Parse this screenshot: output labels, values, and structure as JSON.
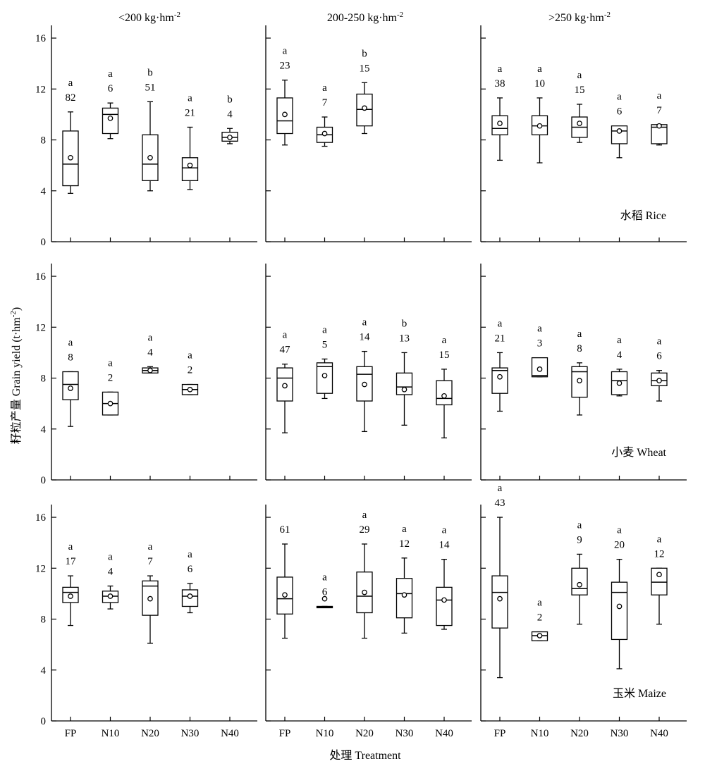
{
  "columns": [
    {
      "pre": "<200 kg·hm",
      "sup": "-2"
    },
    {
      "pre": "200-250 kg·hm",
      "sup": "-2"
    },
    {
      "pre": ">250 kg·hm",
      "sup": "-2"
    }
  ],
  "y_axis_label": {
    "pre": "籽粒产量 Grain yield (t·hm",
    "sup": "-2",
    "post": ")"
  },
  "x_axis_label": "处理 Treatment",
  "crop_labels": [
    "水稻 Rice",
    "小麦 Wheat",
    "玉米 Maize"
  ],
  "chart_data": {
    "type": "box",
    "categories": [
      "FP",
      "N10",
      "N20",
      "N30",
      "N40"
    ],
    "ylim": [
      0,
      17
    ],
    "yticks": [
      0,
      4,
      8,
      12,
      16
    ],
    "panels": [
      {
        "crop": "Rice",
        "range": "<200",
        "boxes": [
          {
            "cat": "FP",
            "min": 3.8,
            "q1": 4.4,
            "median": 6.1,
            "q3": 8.7,
            "max": 10.2,
            "mean": 6.6,
            "n": "82",
            "letter": "a"
          },
          {
            "cat": "N10",
            "min": 8.1,
            "q1": 8.5,
            "median": 10.0,
            "q3": 10.5,
            "max": 10.9,
            "mean": 9.7,
            "n": "6",
            "letter": "a"
          },
          {
            "cat": "N20",
            "min": 4.0,
            "q1": 4.8,
            "median": 6.1,
            "q3": 8.4,
            "max": 11.0,
            "mean": 6.6,
            "n": "51",
            "letter": "b"
          },
          {
            "cat": "N30",
            "min": 4.1,
            "q1": 4.8,
            "median": 5.8,
            "q3": 6.6,
            "max": 9.0,
            "mean": 6.0,
            "n": "21",
            "letter": "a"
          },
          {
            "cat": "N40",
            "min": 7.7,
            "q1": 7.9,
            "median": 8.2,
            "q3": 8.6,
            "max": 8.9,
            "mean": 8.2,
            "n": "4",
            "letter": "b"
          }
        ]
      },
      {
        "crop": "Rice",
        "range": "200-250",
        "boxes": [
          {
            "cat": "FP",
            "min": 7.6,
            "q1": 8.5,
            "median": 9.5,
            "q3": 11.3,
            "max": 12.7,
            "mean": 10.0,
            "n": "23",
            "letter": "a"
          },
          {
            "cat": "N10",
            "min": 7.5,
            "q1": 7.8,
            "median": 8.4,
            "q3": 9.0,
            "max": 9.8,
            "mean": 8.5,
            "n": "7",
            "letter": "a"
          },
          {
            "cat": "N20",
            "min": 8.5,
            "q1": 9.1,
            "median": 10.4,
            "q3": 11.6,
            "max": 12.5,
            "mean": 10.5,
            "n": "15",
            "letter": "b"
          }
        ]
      },
      {
        "crop": "Rice",
        "range": ">250",
        "boxes": [
          {
            "cat": "FP",
            "min": 6.4,
            "q1": 8.4,
            "median": 8.9,
            "q3": 9.9,
            "max": 11.3,
            "mean": 9.3,
            "n": "38",
            "letter": "a"
          },
          {
            "cat": "N10",
            "min": 6.2,
            "q1": 8.4,
            "median": 9.1,
            "q3": 9.9,
            "max": 11.3,
            "mean": 9.1,
            "n": "10",
            "letter": "a"
          },
          {
            "cat": "N20",
            "min": 7.8,
            "q1": 8.2,
            "median": 9.0,
            "q3": 9.8,
            "max": 10.8,
            "mean": 9.3,
            "n": "15",
            "letter": "a"
          },
          {
            "cat": "N30",
            "min": 6.6,
            "q1": 7.7,
            "median": 8.7,
            "q3": 9.1,
            "max": 9.1,
            "mean": 8.7,
            "n": "6",
            "letter": "a"
          },
          {
            "cat": "N40",
            "min": 7.6,
            "q1": 7.7,
            "median": 9.0,
            "q3": 9.2,
            "max": 9.2,
            "mean": 9.1,
            "n": "7",
            "letter": "a"
          }
        ]
      },
      {
        "crop": "Wheat",
        "range": "<200",
        "boxes": [
          {
            "cat": "FP",
            "min": 4.2,
            "q1": 6.3,
            "median": 7.5,
            "q3": 8.5,
            "max": 8.5,
            "mean": 7.2,
            "n": "8",
            "letter": "a"
          },
          {
            "cat": "N10",
            "min": 5.1,
            "q1": 5.1,
            "median": 6.0,
            "q3": 6.9,
            "max": 6.9,
            "mean": 6.0,
            "n": "2",
            "letter": "a"
          },
          {
            "cat": "N20",
            "min": 8.4,
            "q1": 8.4,
            "median": 8.6,
            "q3": 8.8,
            "max": 8.9,
            "mean": 8.6,
            "n": "4",
            "letter": "a"
          },
          {
            "cat": "N30",
            "min": 6.7,
            "q1": 6.7,
            "median": 7.1,
            "q3": 7.5,
            "max": 7.5,
            "mean": 7.1,
            "n": "2",
            "letter": "a"
          }
        ]
      },
      {
        "crop": "Wheat",
        "range": "200-250",
        "boxes": [
          {
            "cat": "FP",
            "min": 3.7,
            "q1": 6.2,
            "median": 8.0,
            "q3": 8.8,
            "max": 9.1,
            "mean": 7.4,
            "n": "47",
            "letter": "a"
          },
          {
            "cat": "N10",
            "min": 6.4,
            "q1": 6.8,
            "median": 8.9,
            "q3": 9.2,
            "max": 9.5,
            "mean": 8.2,
            "n": "5",
            "letter": "a"
          },
          {
            "cat": "N20",
            "min": 3.8,
            "q1": 6.2,
            "median": 8.3,
            "q3": 8.9,
            "max": 10.1,
            "mean": 7.5,
            "n": "14",
            "letter": "a"
          },
          {
            "cat": "N30",
            "min": 4.3,
            "q1": 6.7,
            "median": 7.3,
            "q3": 8.4,
            "max": 10.0,
            "mean": 7.1,
            "n": "13",
            "letter": "b"
          },
          {
            "cat": "N40",
            "min": 3.3,
            "q1": 5.9,
            "median": 6.4,
            "q3": 7.8,
            "max": 8.7,
            "mean": 6.6,
            "n": "15",
            "letter": "a"
          }
        ]
      },
      {
        "crop": "Wheat",
        "range": ">250",
        "boxes": [
          {
            "cat": "FP",
            "min": 5.4,
            "q1": 6.8,
            "median": 8.6,
            "q3": 8.8,
            "max": 10.0,
            "mean": 8.1,
            "n": "21",
            "letter": "a"
          },
          {
            "cat": "N10",
            "min": 8.1,
            "q1": 8.1,
            "median": 8.2,
            "q3": 9.6,
            "max": 9.6,
            "mean": 8.7,
            "n": "3",
            "letter": "a"
          },
          {
            "cat": "N20",
            "min": 5.1,
            "q1": 6.5,
            "median": 8.5,
            "q3": 8.9,
            "max": 9.2,
            "mean": 7.8,
            "n": "8",
            "letter": "a"
          },
          {
            "cat": "N30",
            "min": 6.6,
            "q1": 6.7,
            "median": 7.8,
            "q3": 8.5,
            "max": 8.7,
            "mean": 7.6,
            "n": "4",
            "letter": "a"
          },
          {
            "cat": "N40",
            "min": 6.2,
            "q1": 7.4,
            "median": 7.8,
            "q3": 8.4,
            "max": 8.6,
            "mean": 7.8,
            "n": "6",
            "letter": "a"
          }
        ]
      },
      {
        "crop": "Maize",
        "range": "<200",
        "boxes": [
          {
            "cat": "FP",
            "min": 7.5,
            "q1": 9.3,
            "median": 10.1,
            "q3": 10.5,
            "max": 11.4,
            "mean": 9.8,
            "n": "17",
            "letter": "a"
          },
          {
            "cat": "N10",
            "min": 8.8,
            "q1": 9.3,
            "median": 9.8,
            "q3": 10.2,
            "max": 10.6,
            "mean": 9.8,
            "n": "4",
            "letter": "a"
          },
          {
            "cat": "N20",
            "min": 6.1,
            "q1": 8.3,
            "median": 10.6,
            "q3": 11.0,
            "max": 11.4,
            "mean": 9.6,
            "n": "7",
            "letter": "a"
          },
          {
            "cat": "N30",
            "min": 8.5,
            "q1": 9.0,
            "median": 9.8,
            "q3": 10.3,
            "max": 10.8,
            "mean": 9.8,
            "n": "6",
            "letter": "a"
          }
        ]
      },
      {
        "crop": "Maize",
        "range": "200-250",
        "boxes": [
          {
            "cat": "FP",
            "min": 6.5,
            "q1": 8.4,
            "median": 9.6,
            "q3": 11.3,
            "max": 13.9,
            "mean": 9.9,
            "n": "61",
            "letter": ""
          },
          {
            "cat": "N10",
            "min": 8.9,
            "q1": 8.9,
            "median": 8.95,
            "q3": 9.0,
            "max": 9.0,
            "mean": 9.6,
            "n": "6",
            "letter": "a"
          },
          {
            "cat": "N20",
            "min": 6.5,
            "q1": 8.5,
            "median": 9.8,
            "q3": 11.7,
            "max": 13.9,
            "mean": 10.1,
            "n": "29",
            "letter": "a"
          },
          {
            "cat": "N30",
            "min": 6.9,
            "q1": 8.1,
            "median": 10.0,
            "q3": 11.2,
            "max": 12.8,
            "mean": 9.9,
            "n": "12",
            "letter": "a"
          },
          {
            "cat": "N40",
            "min": 7.2,
            "q1": 7.5,
            "median": 9.5,
            "q3": 10.5,
            "max": 12.7,
            "mean": 9.5,
            "n": "14",
            "letter": "a"
          }
        ]
      },
      {
        "crop": "Maize",
        "range": ">250",
        "boxes": [
          {
            "cat": "FP",
            "min": 3.4,
            "q1": 7.3,
            "median": 10.1,
            "q3": 11.4,
            "max": 16.0,
            "mean": 9.6,
            "n": "43",
            "letter": "a"
          },
          {
            "cat": "N10",
            "min": 6.3,
            "q1": 6.3,
            "median": 6.7,
            "q3": 7.0,
            "max": 7.0,
            "mean": 6.7,
            "n": "2",
            "letter": "a"
          },
          {
            "cat": "N20",
            "min": 7.6,
            "q1": 9.9,
            "median": 10.4,
            "q3": 12.0,
            "max": 13.1,
            "mean": 10.7,
            "n": "9",
            "letter": "a"
          },
          {
            "cat": "N30",
            "min": 4.1,
            "q1": 6.4,
            "median": 10.1,
            "q3": 10.9,
            "max": 12.7,
            "mean": 9.0,
            "n": "20",
            "letter": "a"
          },
          {
            "cat": "N40",
            "min": 7.6,
            "q1": 9.9,
            "median": 10.9,
            "q3": 12.0,
            "max": 12.0,
            "mean": 11.5,
            "n": "12",
            "letter": "a"
          }
        ]
      }
    ]
  }
}
